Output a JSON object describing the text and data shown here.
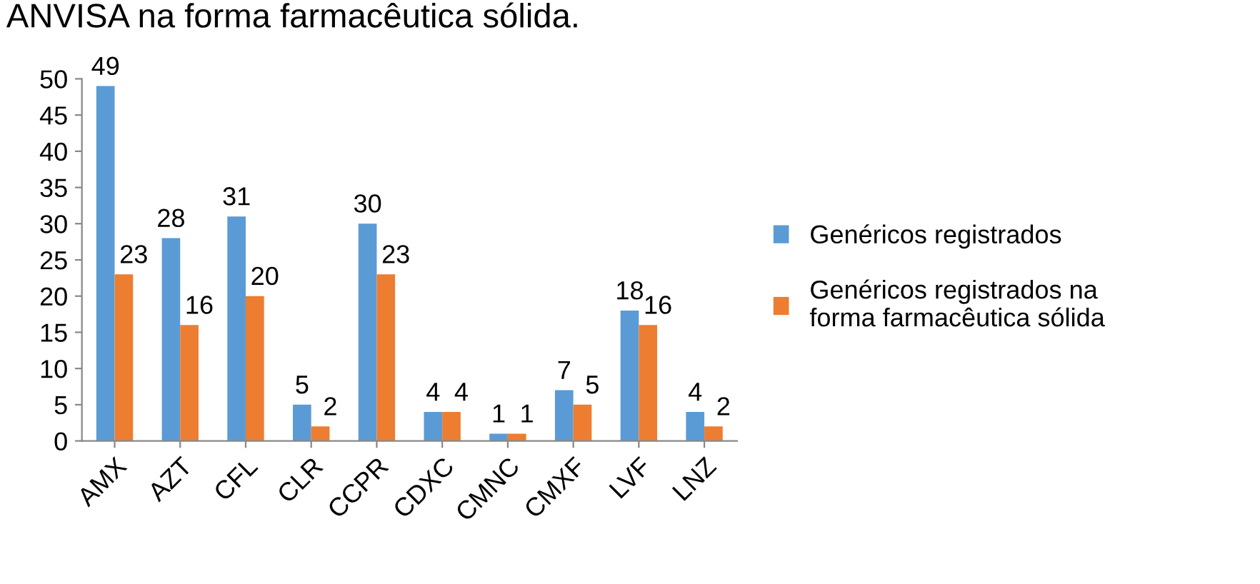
{
  "chart_data": {
    "type": "bar",
    "title": "ANVISA na forma farmacêutica sólida.",
    "categories": [
      "AMX",
      "AZT",
      "CFL",
      "CLR",
      "CCPR",
      "CDXC",
      "CMNC",
      "CMXF",
      "LVF",
      "LNZ"
    ],
    "series": [
      {
        "name": "Genéricos registrados",
        "color": "#5b9bd5",
        "values": [
          49,
          28,
          31,
          5,
          30,
          4,
          1,
          7,
          18,
          4
        ]
      },
      {
        "name": "Genéricos registrados na\nforma farmacêutica sólida",
        "color": "#ed7d31",
        "values": [
          23,
          16,
          20,
          2,
          23,
          4,
          1,
          5,
          16,
          2
        ]
      }
    ],
    "ylim": [
      0,
      50
    ],
    "yticks": [
      0,
      5,
      10,
      15,
      20,
      25,
      30,
      35,
      40,
      45,
      50
    ],
    "data_labels": true,
    "legend": "right",
    "grid": false
  }
}
